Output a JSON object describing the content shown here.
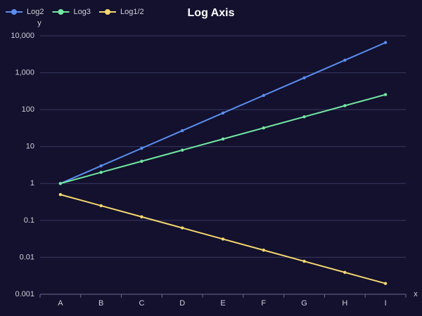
{
  "chart_data": {
    "type": "line",
    "title": "Log Axis",
    "x_label": "x",
    "y_label": "y",
    "categories": [
      "A",
      "B",
      "C",
      "D",
      "E",
      "F",
      "G",
      "H",
      "I"
    ],
    "series": [
      {
        "name": "Log2",
        "color": "#5b8def",
        "values": [
          1,
          3,
          9,
          27,
          81,
          243,
          729,
          2187,
          6561
        ]
      },
      {
        "name": "Log3",
        "color": "#72e8a2",
        "values": [
          1,
          2,
          4,
          8,
          16,
          32,
          64,
          128,
          256
        ]
      },
      {
        "name": "Log1/2",
        "color": "#f5d76e",
        "values": [
          0.5,
          0.25,
          0.125,
          0.0625,
          0.03125,
          0.015625,
          0.0078125,
          0.00390625,
          0.001953125
        ]
      }
    ],
    "ylim": [
      0.001,
      10000
    ],
    "yticks": [
      0.001,
      0.01,
      0.1,
      1,
      10,
      100,
      {
        "value": 1000,
        "label": "1,000"
      },
      {
        "value": 10000,
        "label": "10,000"
      }
    ],
    "log_y": true,
    "grid": true,
    "legend": "top-left"
  }
}
